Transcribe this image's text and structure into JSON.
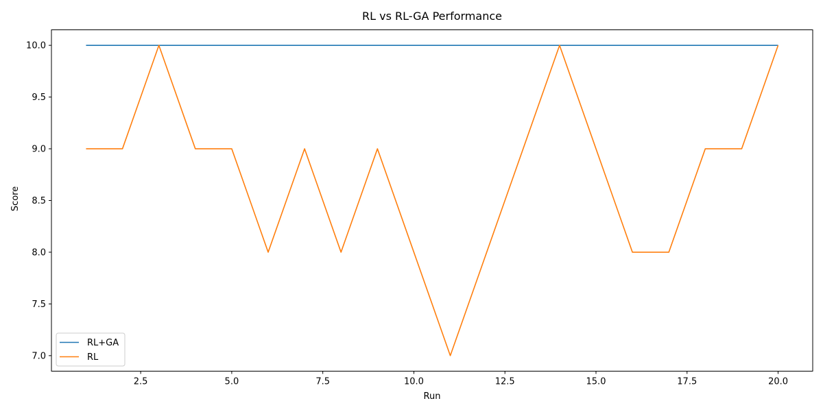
{
  "chart_data": {
    "type": "line",
    "title": "RL vs RL-GA Performance",
    "xlabel": "Run",
    "ylabel": "Score",
    "x": [
      1,
      2,
      3,
      4,
      5,
      6,
      7,
      8,
      9,
      10,
      11,
      12,
      13,
      14,
      15,
      16,
      17,
      18,
      19,
      20
    ],
    "xlim": [
      0.05,
      20.95
    ],
    "ylim": [
      6.85,
      10.15
    ],
    "xticks": [
      2.5,
      5.0,
      7.5,
      10.0,
      12.5,
      15.0,
      17.5,
      20.0
    ],
    "xtick_labels": [
      "2.5",
      "5.0",
      "7.5",
      "10.0",
      "12.5",
      "15.0",
      "17.5",
      "20.0"
    ],
    "yticks": [
      7.0,
      7.5,
      8.0,
      8.5,
      9.0,
      9.5,
      10.0
    ],
    "ytick_labels": [
      "7.0",
      "7.5",
      "8.0",
      "8.5",
      "9.0",
      "9.5",
      "10.0"
    ],
    "grid": false,
    "legend_position": "lower-left",
    "series": [
      {
        "name": "RL+GA",
        "color": "#1f77b4",
        "values": [
          10,
          10,
          10,
          10,
          10,
          10,
          10,
          10,
          10,
          10,
          10,
          10,
          10,
          10,
          10,
          10,
          10,
          10,
          10,
          10
        ]
      },
      {
        "name": "RL",
        "color": "#ff7f0e",
        "values": [
          9,
          9,
          10,
          9,
          9,
          8,
          9,
          8,
          9,
          8,
          7,
          8,
          9,
          10,
          9,
          8,
          8,
          9,
          9,
          10
        ]
      }
    ]
  }
}
